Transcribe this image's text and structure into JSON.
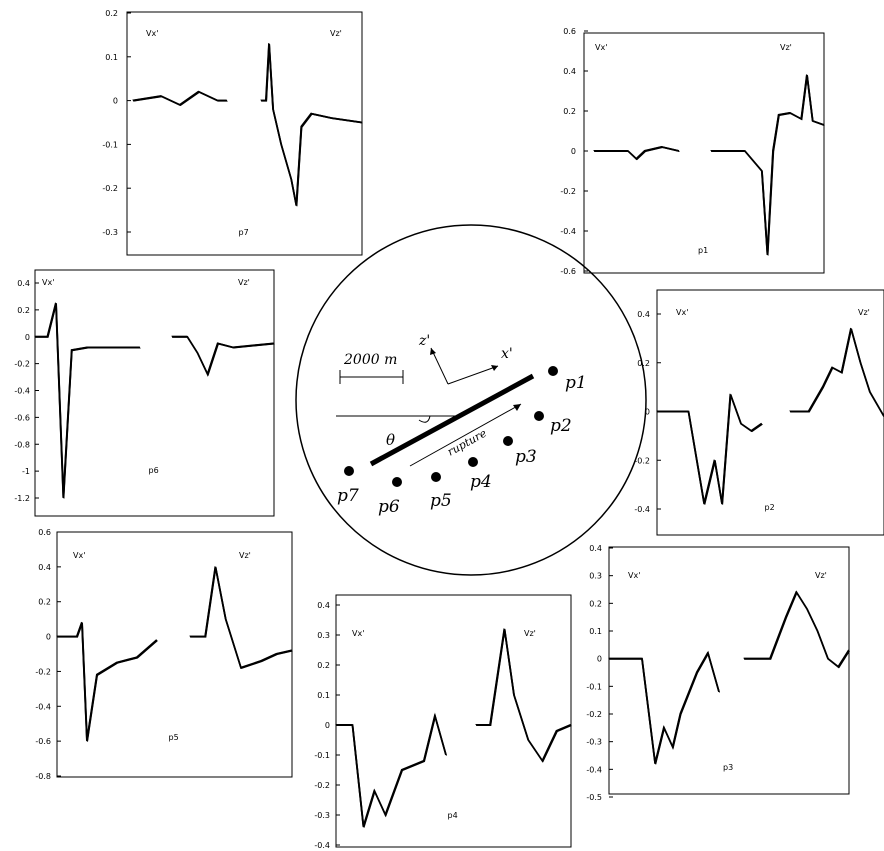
{
  "map": {
    "scale_label": "2000 m",
    "theta_label": "θ",
    "rupture_label": "rupture",
    "x_axis_label": "x'",
    "z_axis_label": "z'",
    "stations": [
      "p1",
      "p2",
      "p3",
      "p4",
      "p5",
      "p6",
      "p7"
    ]
  },
  "chart_data": [
    {
      "type": "line",
      "name": "p7",
      "title": "p7",
      "panel_labels": [
        "Vx'",
        "Vz'"
      ],
      "ylim": [
        -0.3,
        0.2
      ],
      "yticks": [
        "0.2",
        "0.1",
        "0",
        "-0.1",
        "-0.2",
        "-0.3"
      ],
      "grid": false,
      "series": [
        {
          "name": "Vx'",
          "x": [
            0,
            0.3,
            0.5,
            0.7,
            0.9,
            1.0
          ],
          "values": [
            0,
            0.01,
            -0.01,
            0.02,
            0.0,
            0.0
          ]
        },
        {
          "name": "Vz'",
          "x": [
            0,
            0.05,
            0.08,
            0.12,
            0.2,
            0.3,
            0.35,
            0.4,
            0.5,
            0.7,
            1.0
          ],
          "values": [
            0,
            0.0,
            0.13,
            -0.02,
            -0.1,
            -0.18,
            -0.24,
            -0.06,
            -0.03,
            -0.04,
            -0.05
          ]
        }
      ]
    },
    {
      "type": "line",
      "name": "p1",
      "title": "p1",
      "panel_labels": [
        "Vx'",
        "Vz'"
      ],
      "ylim": [
        -0.6,
        0.6
      ],
      "yticks": [
        "0.6",
        "0.4",
        "0.2",
        "0",
        "-0.2",
        "-0.4",
        "-0.6"
      ],
      "grid": false,
      "series": [
        {
          "name": "Vx'",
          "x": [
            0,
            0.4,
            0.5,
            0.6,
            0.8,
            1.0
          ],
          "values": [
            0,
            0.0,
            -0.04,
            0.0,
            0.02,
            0.0
          ]
        },
        {
          "name": "Vz'",
          "x": [
            0,
            0.3,
            0.45,
            0.5,
            0.55,
            0.6,
            0.7,
            0.8,
            0.85,
            0.9,
            1.0
          ],
          "values": [
            0,
            0.0,
            -0.1,
            -0.52,
            0.0,
            0.18,
            0.19,
            0.16,
            0.38,
            0.15,
            0.13
          ]
        }
      ]
    },
    {
      "type": "line",
      "name": "p6",
      "title": "p6",
      "panel_labels": [
        "Vx'",
        "Vz'"
      ],
      "ylim": [
        -1.2,
        0.4
      ],
      "yticks": [
        "0.4",
        "0.2",
        "0",
        "-0.2",
        "-0.4",
        "-0.6",
        "-0.8",
        "-1",
        "-1.2"
      ],
      "grid": false,
      "series": [
        {
          "name": "Vx'",
          "x": [
            0,
            0.12,
            0.2,
            0.27,
            0.35,
            0.5,
            1.0
          ],
          "values": [
            0,
            0.0,
            0.25,
            -1.2,
            -0.1,
            -0.08,
            -0.08
          ]
        },
        {
          "name": "Vz'",
          "x": [
            0,
            0.15,
            0.25,
            0.35,
            0.45,
            0.6,
            1.0
          ],
          "values": [
            0,
            0.0,
            -0.12,
            -0.28,
            -0.05,
            -0.08,
            -0.05
          ]
        }
      ]
    },
    {
      "type": "line",
      "name": "p2",
      "title": "p2",
      "panel_labels": [
        "Vx'",
        "Vz'"
      ],
      "ylim": [
        -0.4,
        0.4
      ],
      "yticks": [
        "0.4",
        "0.2",
        "0",
        "-0.2",
        "-0.4"
      ],
      "grid": false,
      "series": [
        {
          "name": "Vx'",
          "x": [
            0,
            0.3,
            0.45,
            0.55,
            0.62,
            0.7,
            0.8,
            0.9,
            1.0
          ],
          "values": [
            0,
            0.0,
            -0.38,
            -0.2,
            -0.38,
            0.07,
            -0.05,
            -0.08,
            -0.05
          ]
        },
        {
          "name": "Vz'",
          "x": [
            0,
            0.2,
            0.35,
            0.45,
            0.55,
            0.65,
            0.75,
            0.85,
            1.0
          ],
          "values": [
            0,
            0.0,
            0.1,
            0.18,
            0.16,
            0.34,
            0.2,
            0.08,
            -0.02
          ]
        }
      ]
    },
    {
      "type": "line",
      "name": "p5",
      "title": "p5",
      "panel_labels": [
        "Vx'",
        "Vz'"
      ],
      "ylim": [
        -0.8,
        0.6
      ],
      "yticks": [
        "0.6",
        "0.4",
        "0.2",
        "0",
        "-0.2",
        "-0.4",
        "-0.6",
        "-0.8"
      ],
      "grid": false,
      "series": [
        {
          "name": "Vx'",
          "x": [
            0,
            0.2,
            0.25,
            0.3,
            0.4,
            0.6,
            0.8,
            1.0
          ],
          "values": [
            0,
            0.0,
            0.08,
            -0.6,
            -0.22,
            -0.15,
            -0.12,
            -0.02
          ]
        },
        {
          "name": "Vz'",
          "x": [
            0,
            0.15,
            0.25,
            0.35,
            0.5,
            0.7,
            0.85,
            1.0
          ],
          "values": [
            0,
            0.0,
            0.4,
            0.1,
            -0.18,
            -0.14,
            -0.1,
            -0.08
          ]
        }
      ]
    },
    {
      "type": "line",
      "name": "p4",
      "title": "p4",
      "panel_labels": [
        "Vx'",
        "Vz'"
      ],
      "ylim": [
        -0.4,
        0.4
      ],
      "yticks": [
        "0.4",
        "0.3",
        "0.2",
        "0.1",
        "0",
        "-0.1",
        "-0.2",
        "-0.3",
        "-0.4"
      ],
      "grid": false,
      "series": [
        {
          "name": "Vx'",
          "x": [
            0,
            0.15,
            0.25,
            0.35,
            0.45,
            0.6,
            0.8,
            0.9,
            1.0
          ],
          "values": [
            0,
            0.0,
            -0.34,
            -0.22,
            -0.3,
            -0.15,
            -0.12,
            0.03,
            -0.1
          ]
        },
        {
          "name": "Vz'",
          "x": [
            0,
            0.15,
            0.3,
            0.4,
            0.55,
            0.7,
            0.85,
            1.0
          ],
          "values": [
            0,
            0.0,
            0.32,
            0.1,
            -0.05,
            -0.12,
            -0.02,
            0.0
          ]
        }
      ]
    },
    {
      "type": "line",
      "name": "p3",
      "title": "p3",
      "panel_labels": [
        "Vx'",
        "Vz'"
      ],
      "ylim": [
        -0.5,
        0.4
      ],
      "yticks": [
        "0.4",
        "0.3",
        "0.2",
        "0.1",
        "0",
        "-0.1",
        "-0.2",
        "-0.3",
        "-0.4",
        "-0.5"
      ],
      "grid": false,
      "series": [
        {
          "name": "Vx'",
          "x": [
            0,
            0.3,
            0.42,
            0.5,
            0.58,
            0.65,
            0.8,
            0.9,
            1.0
          ],
          "values": [
            0,
            0.0,
            -0.38,
            -0.25,
            -0.32,
            -0.2,
            -0.05,
            0.02,
            -0.12
          ]
        },
        {
          "name": "Vz'",
          "x": [
            0,
            0.25,
            0.4,
            0.5,
            0.6,
            0.7,
            0.8,
            0.9,
            1.0
          ],
          "values": [
            0,
            0.0,
            0.15,
            0.24,
            0.18,
            0.1,
            0.0,
            -0.03,
            0.03
          ]
        }
      ]
    }
  ]
}
